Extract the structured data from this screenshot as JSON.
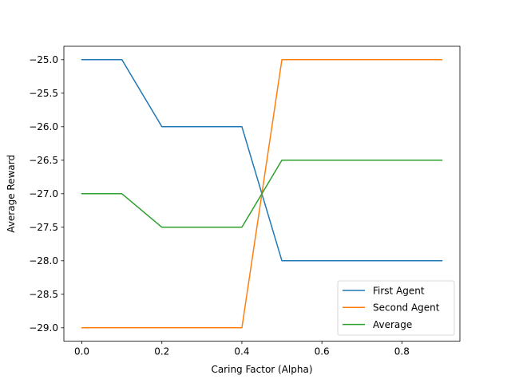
{
  "chart_data": {
    "type": "line",
    "title": "",
    "xlabel": "Caring Factor (Alpha)",
    "ylabel": "Average Reward",
    "x": [
      0.0,
      0.1,
      0.2,
      0.3,
      0.4,
      0.5,
      0.6,
      0.7,
      0.8,
      0.9
    ],
    "xlim": [
      -0.045,
      0.945
    ],
    "ylim": [
      -29.2,
      -24.8
    ],
    "xticks": [
      0.0,
      0.2,
      0.4,
      0.6,
      0.8
    ],
    "xtick_labels": [
      "0.0",
      "0.2",
      "0.4",
      "0.6",
      "0.8"
    ],
    "yticks": [
      -25.0,
      -25.5,
      -26.0,
      -26.5,
      -27.0,
      -27.5,
      -28.0,
      -28.5,
      -29.0
    ],
    "ytick_labels": [
      "−25.0",
      "−25.5",
      "−26.0",
      "−26.5",
      "−27.0",
      "−27.5",
      "−28.0",
      "−28.5",
      "−29.0"
    ],
    "grid": false,
    "legend_position": "lower-right",
    "series": [
      {
        "name": "First Agent",
        "color": "#1f77b4",
        "values": [
          -25,
          -25,
          -26,
          -26,
          -26,
          -28,
          -28,
          -28,
          -28,
          -28
        ]
      },
      {
        "name": "Second Agent",
        "color": "#ff7f0e",
        "values": [
          -29,
          -29,
          -29,
          -29,
          -29,
          -25,
          -25,
          -25,
          -25,
          -25
        ]
      },
      {
        "name": "Average",
        "color": "#2ca02c",
        "values": [
          -27,
          -27,
          -27.5,
          -27.5,
          -27.5,
          -26.5,
          -26.5,
          -26.5,
          -26.5,
          -26.5
        ]
      }
    ]
  }
}
